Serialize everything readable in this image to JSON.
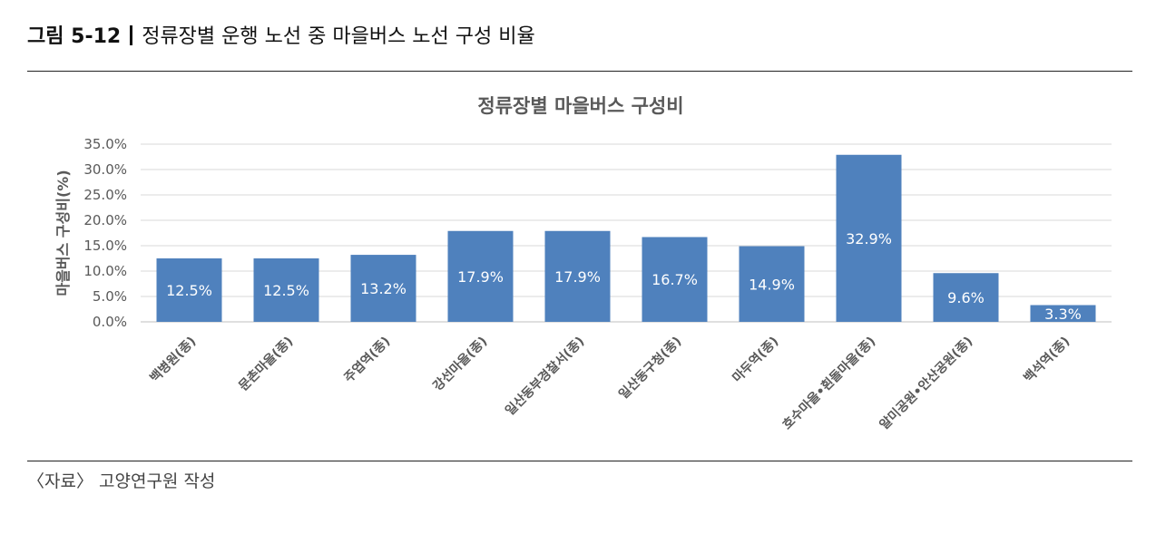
{
  "figure": {
    "number": "그림 5-12",
    "caption": "정류장별 운행 노선 중 마을버스 노선 구성 비율",
    "source": "〈자료〉 고양연구원  작성"
  },
  "chart_data": {
    "type": "bar",
    "title": "정류장별 마을버스 구성비",
    "ylabel": "마을버스 구성비(%)",
    "xlabel": "",
    "ylim": [
      0,
      35
    ],
    "yticks": [
      "0.0%",
      "5.0%",
      "10.0%",
      "15.0%",
      "20.0%",
      "25.0%",
      "30.0%",
      "35.0%"
    ],
    "grid": true,
    "bar_color": "#4f81bd",
    "categories": [
      "백병원(종)",
      "문촌마을(종)",
      "주엽역(종)",
      "강선마을(종)",
      "일산동부경찰서(종)",
      "일산동구청(종)",
      "마두역(종)",
      "호수마을•흰돌마을(종)",
      "알미공원•안산공원(종)",
      "백석역(종)"
    ],
    "values": [
      12.5,
      12.5,
      13.2,
      17.9,
      17.9,
      16.7,
      14.9,
      32.9,
      9.6,
      3.3
    ],
    "data_labels": [
      "12.5%",
      "12.5%",
      "13.2%",
      "17.9%",
      "17.9%",
      "16.7%",
      "14.9%",
      "32.9%",
      "9.6%",
      "3.3%"
    ]
  }
}
